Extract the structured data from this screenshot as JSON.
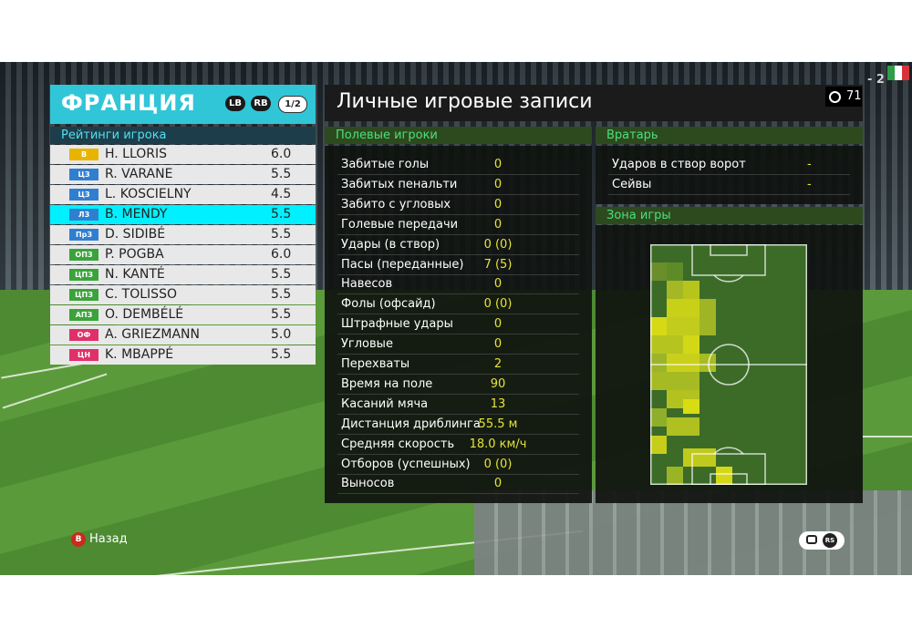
{
  "team": {
    "name": "ФРАНЦИЯ",
    "lb": "LB",
    "rb": "RB",
    "page": "1/2"
  },
  "ratings_title": "Рейтинги игрока",
  "players": [
    {
      "pos": "В",
      "pos_color": "#e8b400",
      "name": "H. LLORIS",
      "rating": "6.0"
    },
    {
      "pos": "ЦЗ",
      "pos_color": "#2f7fd1",
      "name": "R. VARANE",
      "rating": "5.5"
    },
    {
      "pos": "ЦЗ",
      "pos_color": "#2f7fd1",
      "name": "L. KOSCIELNY",
      "rating": "4.5"
    },
    {
      "pos": "ЛЗ",
      "pos_color": "#2f7fd1",
      "name": "B. MENDY",
      "rating": "5.5"
    },
    {
      "pos": "ПрЗ",
      "pos_color": "#2f7fd1",
      "name": "D. SIDIBÉ",
      "rating": "5.5"
    },
    {
      "pos": "ОПЗ",
      "pos_color": "#3aa33a",
      "name": "P. POGBA",
      "rating": "6.0"
    },
    {
      "pos": "ЦПЗ",
      "pos_color": "#3aa33a",
      "name": "N. KANTÉ",
      "rating": "5.5"
    },
    {
      "pos": "ЦПЗ",
      "pos_color": "#3aa33a",
      "name": "C. TOLISSO",
      "rating": "5.5"
    },
    {
      "pos": "АПЗ",
      "pos_color": "#3aa33a",
      "name": "O. DEMBÉLÉ",
      "rating": "5.5"
    },
    {
      "pos": "ОФ",
      "pos_color": "#e0306a",
      "name": "A. GRIEZMANN",
      "rating": "5.0"
    },
    {
      "pos": "ЦН",
      "pos_color": "#e0306a",
      "name": "K. MBAPPÉ",
      "rating": "5.5"
    }
  ],
  "selected_player_index": 3,
  "main_title": "Личные игровые записи",
  "timer": "71",
  "field_players_header": "Полевые игроки",
  "stats": [
    {
      "label": "Забитые голы",
      "value": "0"
    },
    {
      "label": "Забитых пенальти",
      "value": "0"
    },
    {
      "label": "Забито с угловых",
      "value": "0"
    },
    {
      "label": "Голевые передачи",
      "value": "0"
    },
    {
      "label": "Удары (в створ)",
      "value": "0 (0)"
    },
    {
      "label": "Пасы (переданные)",
      "value": "7 (5)"
    },
    {
      "label": "Навесов",
      "value": "0"
    },
    {
      "label": "Фолы (офсайд)",
      "value": "0 (0)"
    },
    {
      "label": "Штрафные удары",
      "value": "0"
    },
    {
      "label": "Угловые",
      "value": "0"
    },
    {
      "label": "Перехваты",
      "value": "2"
    },
    {
      "label": "Время на поле",
      "value": "90"
    },
    {
      "label": "Касаний мяча",
      "value": "13"
    },
    {
      "label": "Дистанция дриблинга",
      "value": "55.5 м"
    },
    {
      "label": "Средняя скорость",
      "value": "18.0 км/ч"
    },
    {
      "label": "Отборов (успешных)",
      "value": "0 (0)"
    },
    {
      "label": "Выносов",
      "value": "0"
    }
  ],
  "goalkeeper_header": "Вратарь",
  "goalkeeper_stats": [
    {
      "label": "Ударов в створ ворот",
      "value": "-"
    },
    {
      "label": "Сейвы",
      "value": "-"
    }
  ],
  "zone_header": "Зона игры",
  "back_button_letter": "B",
  "back_label": "Назад",
  "rs_label": "RS",
  "scoreboard_snippet": "- 2",
  "colors": {
    "accent_cyan": "#30c6d8",
    "selected_row": "#00f0ff",
    "stat_value": "#e6e23c",
    "section_header": "#4ae07a"
  }
}
